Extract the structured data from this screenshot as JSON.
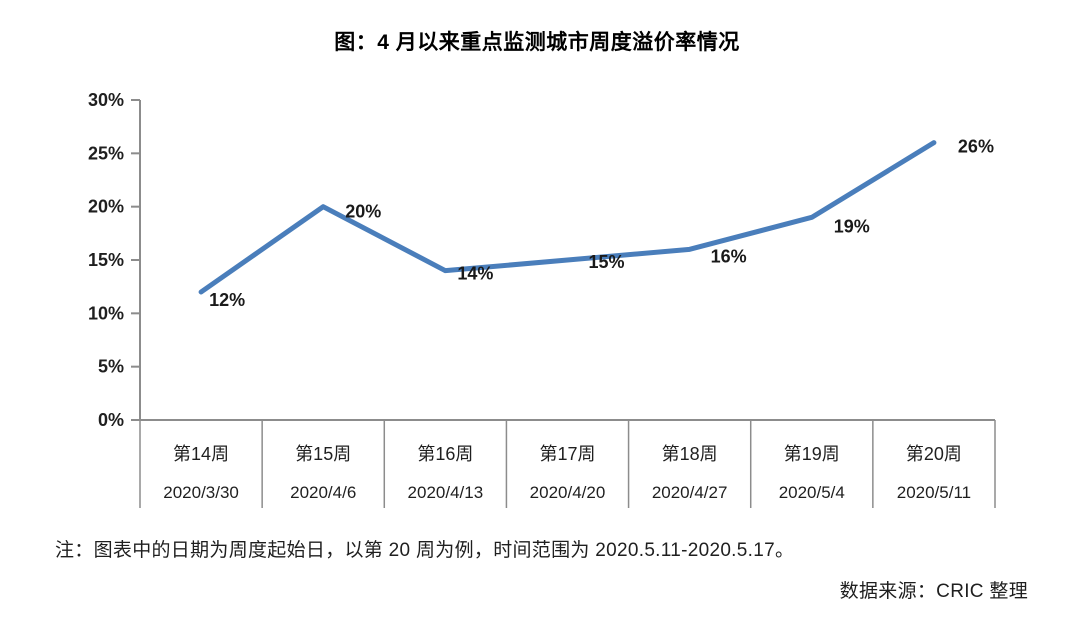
{
  "title": "图：4 月以来重点监测城市周度溢价率情况",
  "note": "注：图表中的日期为周度起始日，以第 20 周为例，时间范围为 2020.5.11-2020.5.17。",
  "source": "数据来源：CRIC 整理",
  "colors": {
    "line": "#4A7EBB",
    "axis": "#8C8C8C",
    "text": "#1f1f1f",
    "background": "#ffffff"
  },
  "chart_data": {
    "type": "line",
    "title": "图：4 月以来重点监测城市周度溢价率情况",
    "categories": [
      "第14周",
      "第15周",
      "第16周",
      "第17周",
      "第18周",
      "第19周",
      "第20周"
    ],
    "category_dates": [
      "2020/3/30",
      "2020/4/6",
      "2020/4/13",
      "2020/4/20",
      "2020/4/27",
      "2020/5/4",
      "2020/5/11"
    ],
    "values": [
      12,
      20,
      14,
      15,
      16,
      19,
      26
    ],
    "point_labels": [
      "12%",
      "20%",
      "14%",
      "15%",
      "16%",
      "19%",
      "26%"
    ],
    "xlabel": "",
    "ylabel": "",
    "ylim": [
      0,
      30
    ],
    "yticks": [
      0,
      5,
      10,
      15,
      20,
      25,
      30
    ],
    "ytick_labels": [
      "0%",
      "5%",
      "10%",
      "15%",
      "20%",
      "25%",
      "30%"
    ],
    "grid": false,
    "legend": false
  }
}
